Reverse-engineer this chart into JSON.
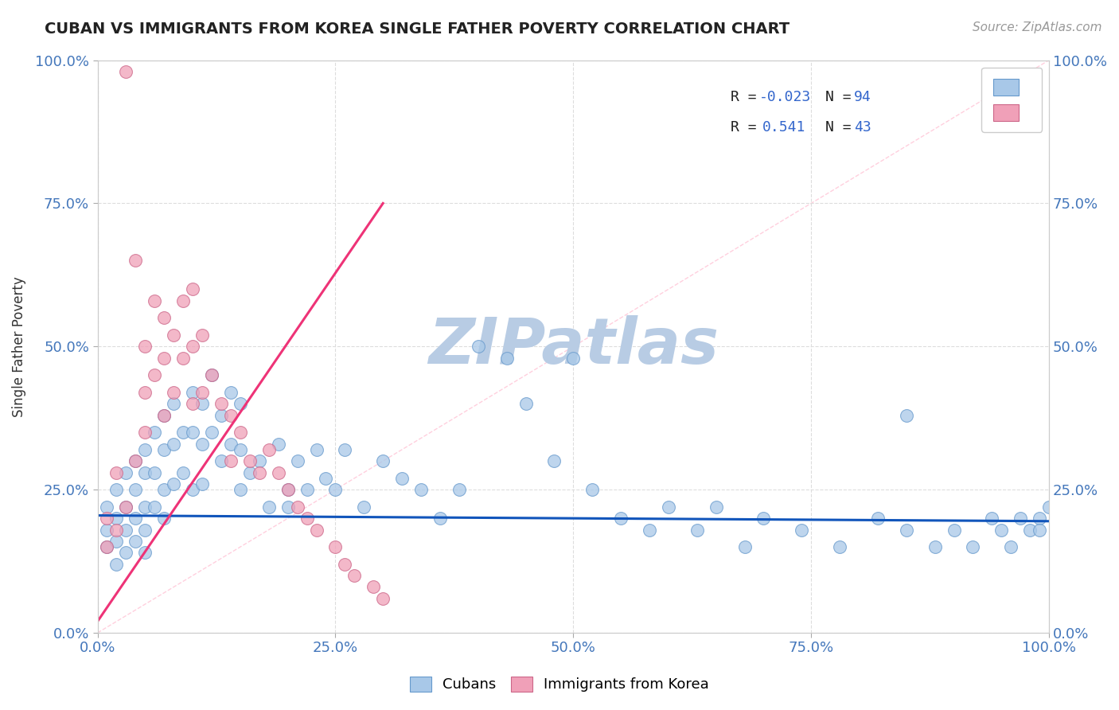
{
  "title": "CUBAN VS IMMIGRANTS FROM KOREA SINGLE FATHER POVERTY CORRELATION CHART",
  "source_text": "Source: ZipAtlas.com",
  "ylabel": "Single Father Poverty",
  "xlim": [
    0,
    1
  ],
  "ylim": [
    0,
    1
  ],
  "xticks": [
    0.0,
    0.25,
    0.5,
    0.75,
    1.0
  ],
  "yticks": [
    0.0,
    0.25,
    0.5,
    0.75,
    1.0
  ],
  "xtick_labels": [
    "0.0%",
    "25.0%",
    "50.0%",
    "75.0%",
    "100.0%"
  ],
  "ytick_labels": [
    "0.0%",
    "25.0%",
    "50.0%",
    "75.0%",
    "100.0%"
  ],
  "legend_labels": [
    "Cubans",
    "Immigrants from Korea"
  ],
  "R_cubans": -0.023,
  "N_cubans": 94,
  "R_korea": 0.541,
  "N_korea": 43,
  "color_cubans": "#A8C8E8",
  "color_korea": "#F0A0B8",
  "color_trend_cubans": "#1155BB",
  "color_trend_korea": "#EE3377",
  "watermark": "ZIPatlas",
  "watermark_color_zip": "#B8CCE4",
  "watermark_color_atlas": "#90B0D0",
  "background_color": "#FFFFFF",
  "title_color": "#222222",
  "axis_label_color": "#333333",
  "tick_label_color": "#4477BB",
  "grid_color": "#DDDDDD",
  "cubans_x": [
    0.01,
    0.01,
    0.01,
    0.02,
    0.02,
    0.02,
    0.02,
    0.03,
    0.03,
    0.03,
    0.03,
    0.04,
    0.04,
    0.04,
    0.04,
    0.05,
    0.05,
    0.05,
    0.05,
    0.05,
    0.06,
    0.06,
    0.06,
    0.07,
    0.07,
    0.07,
    0.07,
    0.08,
    0.08,
    0.08,
    0.09,
    0.09,
    0.1,
    0.1,
    0.1,
    0.11,
    0.11,
    0.11,
    0.12,
    0.12,
    0.13,
    0.13,
    0.14,
    0.14,
    0.15,
    0.15,
    0.15,
    0.16,
    0.17,
    0.18,
    0.19,
    0.2,
    0.21,
    0.22,
    0.23,
    0.24,
    0.25,
    0.26,
    0.28,
    0.3,
    0.32,
    0.34,
    0.36,
    0.38,
    0.4,
    0.43,
    0.45,
    0.48,
    0.5,
    0.52,
    0.55,
    0.58,
    0.6,
    0.63,
    0.65,
    0.68,
    0.7,
    0.74,
    0.78,
    0.82,
    0.85,
    0.88,
    0.9,
    0.92,
    0.94,
    0.95,
    0.96,
    0.97,
    0.98,
    0.99,
    0.99,
    1.0,
    0.85,
    0.2
  ],
  "cubans_y": [
    0.22,
    0.18,
    0.15,
    0.25,
    0.2,
    0.16,
    0.12,
    0.28,
    0.22,
    0.18,
    0.14,
    0.3,
    0.25,
    0.2,
    0.16,
    0.32,
    0.28,
    0.22,
    0.18,
    0.14,
    0.35,
    0.28,
    0.22,
    0.38,
    0.32,
    0.25,
    0.2,
    0.4,
    0.33,
    0.26,
    0.35,
    0.28,
    0.42,
    0.35,
    0.25,
    0.4,
    0.33,
    0.26,
    0.45,
    0.35,
    0.38,
    0.3,
    0.42,
    0.33,
    0.4,
    0.32,
    0.25,
    0.28,
    0.3,
    0.22,
    0.33,
    0.25,
    0.3,
    0.25,
    0.32,
    0.27,
    0.25,
    0.32,
    0.22,
    0.3,
    0.27,
    0.25,
    0.2,
    0.25,
    0.5,
    0.48,
    0.4,
    0.3,
    0.48,
    0.25,
    0.2,
    0.18,
    0.22,
    0.18,
    0.22,
    0.15,
    0.2,
    0.18,
    0.15,
    0.2,
    0.18,
    0.15,
    0.18,
    0.15,
    0.2,
    0.18,
    0.15,
    0.2,
    0.18,
    0.2,
    0.18,
    0.22,
    0.38,
    0.22
  ],
  "korea_x": [
    0.01,
    0.01,
    0.02,
    0.02,
    0.03,
    0.03,
    0.04,
    0.04,
    0.05,
    0.05,
    0.05,
    0.06,
    0.06,
    0.07,
    0.07,
    0.07,
    0.08,
    0.08,
    0.09,
    0.09,
    0.1,
    0.1,
    0.1,
    0.11,
    0.11,
    0.12,
    0.13,
    0.14,
    0.14,
    0.15,
    0.16,
    0.17,
    0.18,
    0.19,
    0.2,
    0.21,
    0.22,
    0.23,
    0.25,
    0.26,
    0.27,
    0.29,
    0.3
  ],
  "korea_y": [
    0.2,
    0.15,
    0.28,
    0.18,
    0.98,
    0.22,
    0.65,
    0.3,
    0.5,
    0.42,
    0.35,
    0.58,
    0.45,
    0.55,
    0.48,
    0.38,
    0.52,
    0.42,
    0.58,
    0.48,
    0.6,
    0.5,
    0.4,
    0.52,
    0.42,
    0.45,
    0.4,
    0.38,
    0.3,
    0.35,
    0.3,
    0.28,
    0.32,
    0.28,
    0.25,
    0.22,
    0.2,
    0.18,
    0.15,
    0.12,
    0.1,
    0.08,
    0.06
  ],
  "cubans_trend_x0": 0.0,
  "cubans_trend_x1": 1.0,
  "cubans_trend_y0": 0.205,
  "cubans_trend_y1": 0.195,
  "korea_trend_x0": 0.0,
  "korea_trend_x1": 0.3,
  "korea_trend_y0": 0.02,
  "korea_trend_y1": 0.75
}
